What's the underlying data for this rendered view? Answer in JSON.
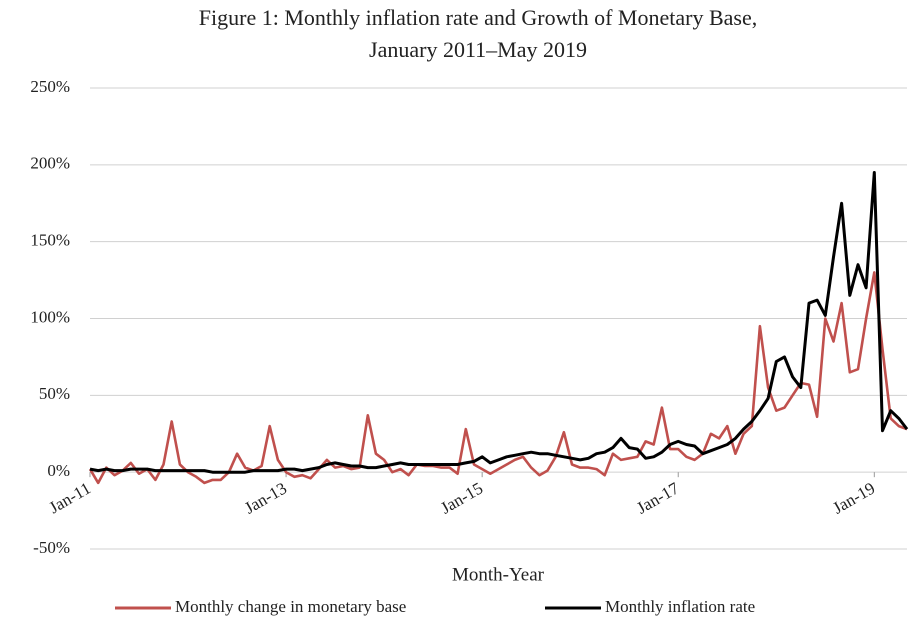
{
  "chart_data": {
    "type": "line",
    "title": "Figure 1: Monthly inflation rate and Growth of Monetary Base,",
    "subtitle": "January 2011–May 2019",
    "x_label": "Month-Year",
    "categories": [
      "Jan-11",
      null,
      null,
      null,
      null,
      null,
      null,
      null,
      null,
      null,
      null,
      null,
      null,
      null,
      null,
      null,
      null,
      null,
      null,
      null,
      null,
      null,
      null,
      null,
      "Jan-13",
      null,
      null,
      null,
      null,
      null,
      null,
      null,
      null,
      null,
      null,
      null,
      null,
      null,
      null,
      null,
      null,
      null,
      null,
      null,
      null,
      null,
      null,
      null,
      "Jan-15",
      null,
      null,
      null,
      null,
      null,
      null,
      null,
      null,
      null,
      null,
      null,
      null,
      null,
      null,
      null,
      null,
      null,
      null,
      null,
      null,
      null,
      null,
      null,
      "Jan-17",
      null,
      null,
      null,
      null,
      null,
      null,
      null,
      null,
      null,
      null,
      null,
      null,
      null,
      null,
      null,
      null,
      null,
      null,
      null,
      null,
      null,
      null,
      null,
      "Jan-19",
      null,
      null,
      null,
      null
    ],
    "series": [
      {
        "name": "Monthly change in monetary base",
        "color": "#c0504d",
        "values": [
          2,
          -7,
          3,
          -2,
          1,
          6,
          -1,
          2,
          -5,
          5,
          33,
          5,
          0,
          -3,
          -7,
          -5,
          -5,
          0,
          12,
          3,
          1,
          4,
          30,
          8,
          0,
          -3,
          -2,
          -4,
          2,
          8,
          3,
          4,
          2,
          3,
          37,
          12,
          8,
          0,
          2,
          -2,
          5,
          4,
          4,
          3,
          3,
          -1,
          28,
          5,
          2,
          -1,
          2,
          5,
          8,
          10,
          3,
          -2,
          1,
          10,
          26,
          5,
          3,
          3,
          2,
          -2,
          12,
          8,
          9,
          10,
          20,
          18,
          42,
          15,
          15,
          10,
          8,
          12,
          25,
          22,
          30,
          12,
          25,
          30,
          95,
          55,
          40,
          42,
          50,
          58,
          57,
          36,
          100,
          85,
          110,
          65,
          67,
          100,
          130,
          80,
          35,
          30,
          28
        ]
      },
      {
        "name": "Monthly inflation rate",
        "color": "#000000",
        "values": [
          2,
          1,
          2,
          1,
          1,
          2,
          2,
          2,
          1,
          1,
          1,
          1,
          1,
          1,
          1,
          0,
          0,
          0,
          0,
          0,
          1,
          1,
          1,
          1,
          2,
          2,
          1,
          2,
          3,
          5,
          6,
          5,
          4,
          4,
          3,
          3,
          4,
          5,
          6,
          5,
          5,
          5,
          5,
          5,
          5,
          5,
          6,
          7,
          10,
          6,
          8,
          10,
          11,
          12,
          13,
          12,
          12,
          11,
          10,
          9,
          8,
          9,
          12,
          13,
          16,
          22,
          16,
          15,
          9,
          10,
          13,
          18,
          20,
          18,
          17,
          12,
          14,
          16,
          18,
          22,
          28,
          33,
          40,
          48,
          72,
          75,
          62,
          55,
          110,
          112,
          102,
          140,
          175,
          115,
          135,
          120,
          195,
          27,
          40,
          35,
          28
        ]
      }
    ],
    "ylim": [
      -50,
      250
    ],
    "yticks": [
      {
        "value": -50,
        "label": "-50%"
      },
      {
        "value": 0,
        "label": "0%"
      },
      {
        "value": 50,
        "label": "50%"
      },
      {
        "value": 100,
        "label": "100%"
      },
      {
        "value": 150,
        "label": "150%"
      },
      {
        "value": 200,
        "label": "200%"
      },
      {
        "value": 250,
        "label": "250%"
      }
    ],
    "grid": true,
    "legend": "bottom"
  }
}
